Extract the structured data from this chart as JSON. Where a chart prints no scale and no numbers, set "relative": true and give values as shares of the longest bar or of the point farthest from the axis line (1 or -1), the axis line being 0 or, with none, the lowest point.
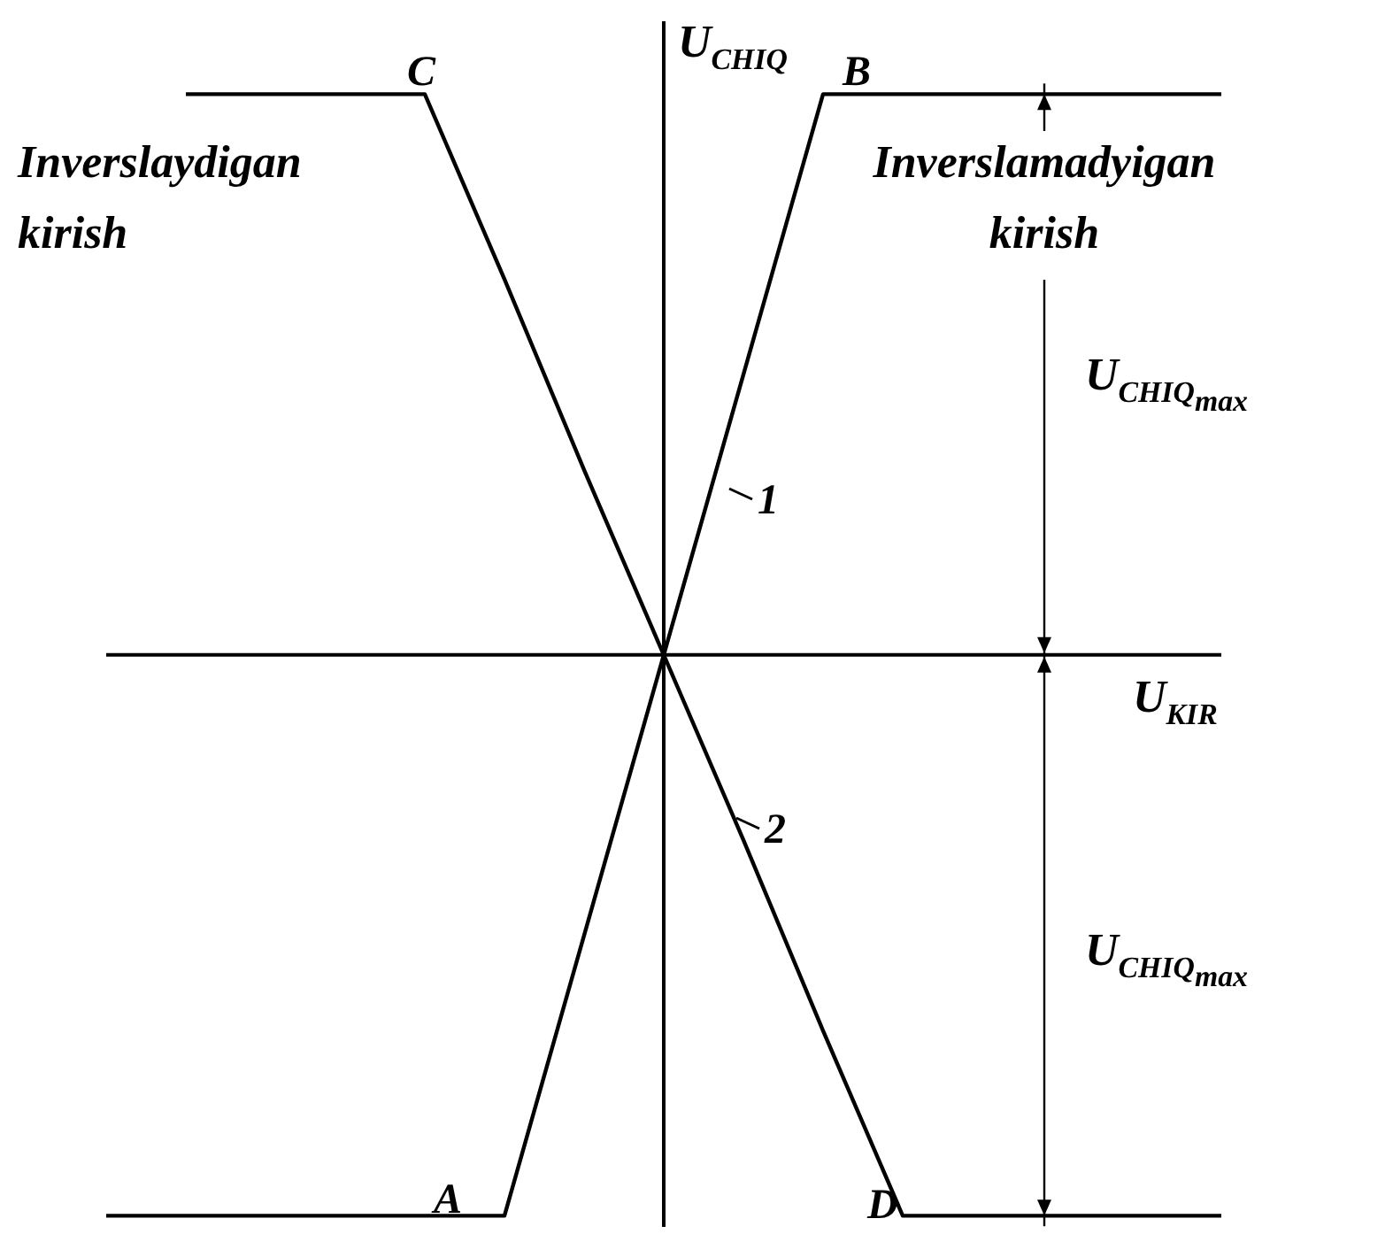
{
  "chart_data": {
    "type": "line",
    "relative": true,
    "xlabel": "U$_{KIR}$",
    "ylabel": "U$_{CHIQ}$",
    "categories": [
      null,
      null,
      null,
      null,
      null,
      null,
      null,
      null,
      null,
      null,
      null,
      null,
      null,
      null,
      null
    ],
    "series": [
      {
        "color": "#000000",
        "values": [
          -1,
          -1,
          -1,
          -1,
          -1,
          -1,
          -0.5,
          0,
          0.5,
          1,
          1,
          1,
          1,
          1,
          1
        ]
      },
      {
        "color": "#000000",
        "values": [
          null,
          1,
          1,
          1,
          1,
          0.67,
          0.33,
          0,
          -0.33,
          -0.67,
          -1,
          -1,
          -1,
          -1,
          -1
        ]
      }
    ],
    "annotations": [
      "Inverslaydigan kirish",
      "Inverslamadyigan kirish",
      "U$_{CHIQ}$$_{max}$",
      "U$_{CHIQ}$$_{max}$",
      "A",
      "B",
      "C",
      "D",
      "1",
      "2"
    ]
  }
}
